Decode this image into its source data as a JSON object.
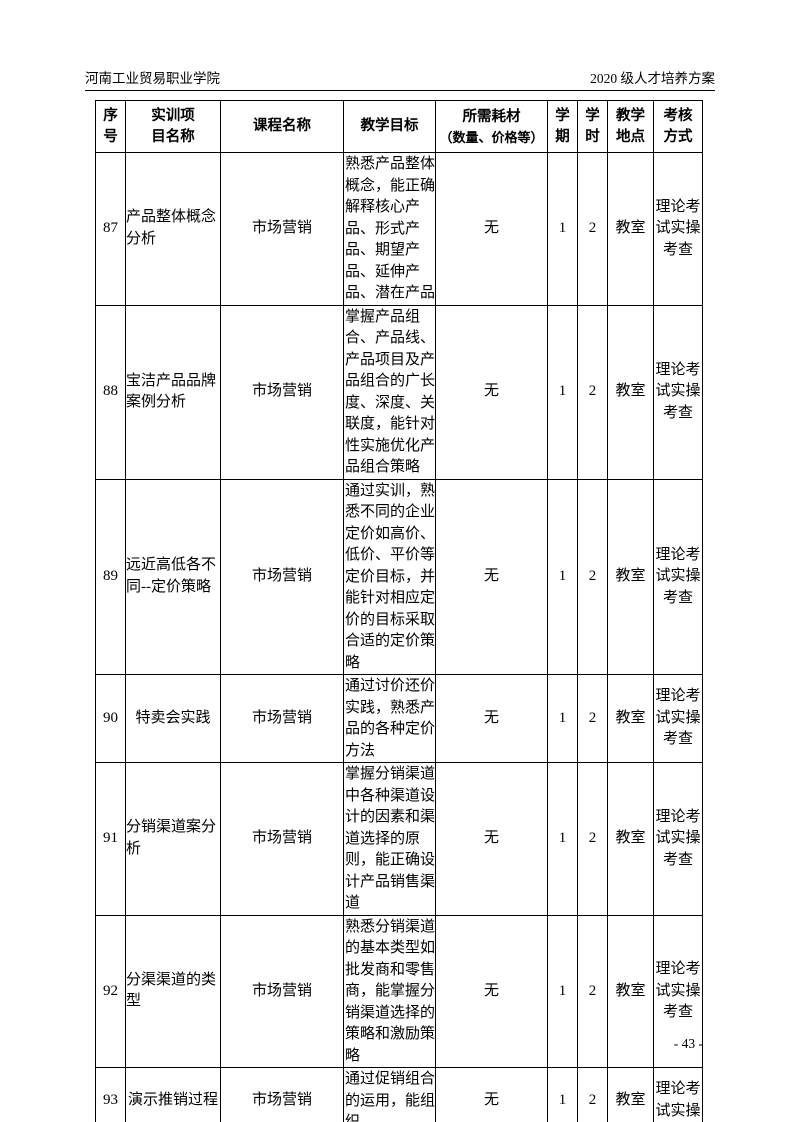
{
  "page": {
    "header_left": "河南工业贸易职业学院",
    "header_right": "2020 级人才培养方案",
    "page_number": "- 43 -"
  },
  "table": {
    "columns": [
      {
        "key": "index",
        "label": "序\n号"
      },
      {
        "key": "project",
        "label": "实训项\n目名称"
      },
      {
        "key": "course",
        "label": "课程名称"
      },
      {
        "key": "goal",
        "label": "教学目标"
      },
      {
        "key": "materials",
        "label": "所需耗材",
        "label2": "（数量、价格等）"
      },
      {
        "key": "semester",
        "label": "学\n期"
      },
      {
        "key": "hours",
        "label": "学\n时"
      },
      {
        "key": "location",
        "label": "教学\n地点"
      },
      {
        "key": "assessment",
        "label": "考核\n方式"
      }
    ],
    "rows": [
      {
        "index": "87",
        "project": "产品整体概念分析",
        "course": "市场营销",
        "goal": "熟悉产品整体概念，能正确解释核心产品、形式产品、期望产品、延伸产品、潜在产品",
        "materials": "无",
        "semester": "1",
        "hours": "2",
        "location": "教室",
        "assessment": "理论考试实操考查"
      },
      {
        "index": "88",
        "project": "宝洁产品品牌案例分析",
        "course": "市场营销",
        "goal": "掌握产品组合、产品线、产品项目及产品组合的广长度、深度、关联度，能针对性实施优化产品组合策略",
        "materials": "无",
        "semester": "1",
        "hours": "2",
        "location": "教室",
        "assessment": "理论考试实操考查"
      },
      {
        "index": "89",
        "project": "远近高低各不同--定价策略",
        "course": "市场营销",
        "goal": "通过实训，熟悉不同的企业定价如高价、低价、平价等定价目标，并能针对相应定价的目标采取合适的定价策略",
        "materials": "无",
        "semester": "1",
        "hours": "2",
        "location": "教室",
        "assessment": "理论考试实操考查"
      },
      {
        "index": "90",
        "project": "特卖会实践",
        "course": "市场营销",
        "goal": "通过讨价还价实践，熟悉产品的各种定价方法",
        "materials": "无",
        "semester": "1",
        "hours": "2",
        "location": "教室",
        "assessment": "理论考试实操考查"
      },
      {
        "index": "91",
        "project": "分销渠道案分析",
        "course": "市场营销",
        "goal": "掌握分销渠道中各种渠道设计的因素和渠道选择的原则，能正确设计产品销售渠道",
        "materials": "无",
        "semester": "1",
        "hours": "2",
        "location": "教室",
        "assessment": "理论考试实操考查"
      },
      {
        "index": "92",
        "project": "分渠渠道的类型",
        "course": "市场营销",
        "goal": "熟悉分销渠道的基本类型如批发商和零售商，能掌握分销渠道选择的策略和激励策略",
        "materials": "无",
        "semester": "1",
        "hours": "2",
        "location": "教室",
        "assessment": "理论考试实操考查"
      },
      {
        "index": "93",
        "project": "演示推销过程",
        "course": "市场营销",
        "goal": "通过促销组合的运用，能组织",
        "materials": "无",
        "semester": "1",
        "hours": "2",
        "location": "教室",
        "assessment": "理论考试实操"
      }
    ]
  }
}
